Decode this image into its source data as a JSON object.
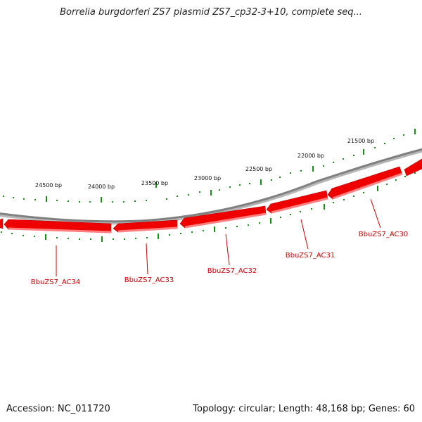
{
  "header": {
    "title": "Borrelia burgdorferi ZS7 plasmid ZS7_cp32-3+10, complete seq..."
  },
  "footer": {
    "accession": "Accession: NC_011720",
    "summary": "Topology: circular; Length: 48,168 bp; Genes: 60"
  },
  "colors": {
    "backbone": "#808080",
    "gene_fill": "#ee0000",
    "gene_highlight": "#ff8080",
    "tick": "#1a8c1a",
    "gene_label": "#cc0000"
  },
  "position_labels": [
    "24500 bp",
    "24000 bp",
    "23500 bp",
    "23000 bp",
    "22500 bp",
    "22000 bp",
    "21500 bp"
  ],
  "genes": [
    "BbuZS7_AC34",
    "BbuZS7_AC33",
    "BbuZS7_AC32",
    "BbuZS7_AC31",
    "BbuZS7_AC30"
  ]
}
